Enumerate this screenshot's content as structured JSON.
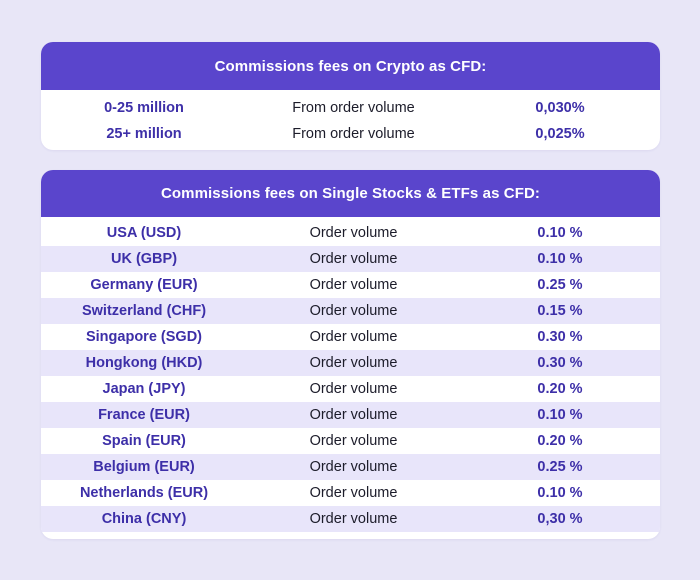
{
  "crypto": {
    "title": "Commissions fees on Crypto as CFD:",
    "rows": [
      {
        "label": "0-25 million",
        "basis": "From order volume",
        "rate": "0,030%"
      },
      {
        "label": "25+ million",
        "basis": "From order volume",
        "rate": "0,025%"
      }
    ]
  },
  "stocks": {
    "title": "Commissions fees on Single Stocks & ETFs as CFD:",
    "rows": [
      {
        "label": "USA (USD)",
        "basis": "Order volume",
        "rate": "0.10 %"
      },
      {
        "label": "UK (GBP)",
        "basis": "Order volume",
        "rate": "0.10 %"
      },
      {
        "label": "Germany (EUR)",
        "basis": "Order volume",
        "rate": "0.25 %"
      },
      {
        "label": "Switzerland (CHF)",
        "basis": "Order volume",
        "rate": "0.15 %"
      },
      {
        "label": "Singapore (SGD)",
        "basis": "Order volume",
        "rate": "0.30 %"
      },
      {
        "label": "Hongkong (HKD)",
        "basis": "Order volume",
        "rate": "0.30 %"
      },
      {
        "label": "Japan (JPY)",
        "basis": "Order volume",
        "rate": "0.20 %"
      },
      {
        "label": "France (EUR)",
        "basis": "Order volume",
        "rate": "0.10 %"
      },
      {
        "label": "Spain (EUR)",
        "basis": "Order volume",
        "rate": "0.20 %"
      },
      {
        "label": "Belgium (EUR)",
        "basis": "Order volume",
        "rate": "0.25 %"
      },
      {
        "label": "Netherlands (EUR)",
        "basis": "Order volume",
        "rate": "0.10 %"
      },
      {
        "label": "China (CNY)",
        "basis": "Order volume",
        "rate": "0,30 %"
      }
    ]
  },
  "colors": {
    "background": "#e8e6f7",
    "header": "#5a45cc",
    "accent_text": "#3d2fa8",
    "stripe": "#e8e5fa"
  }
}
